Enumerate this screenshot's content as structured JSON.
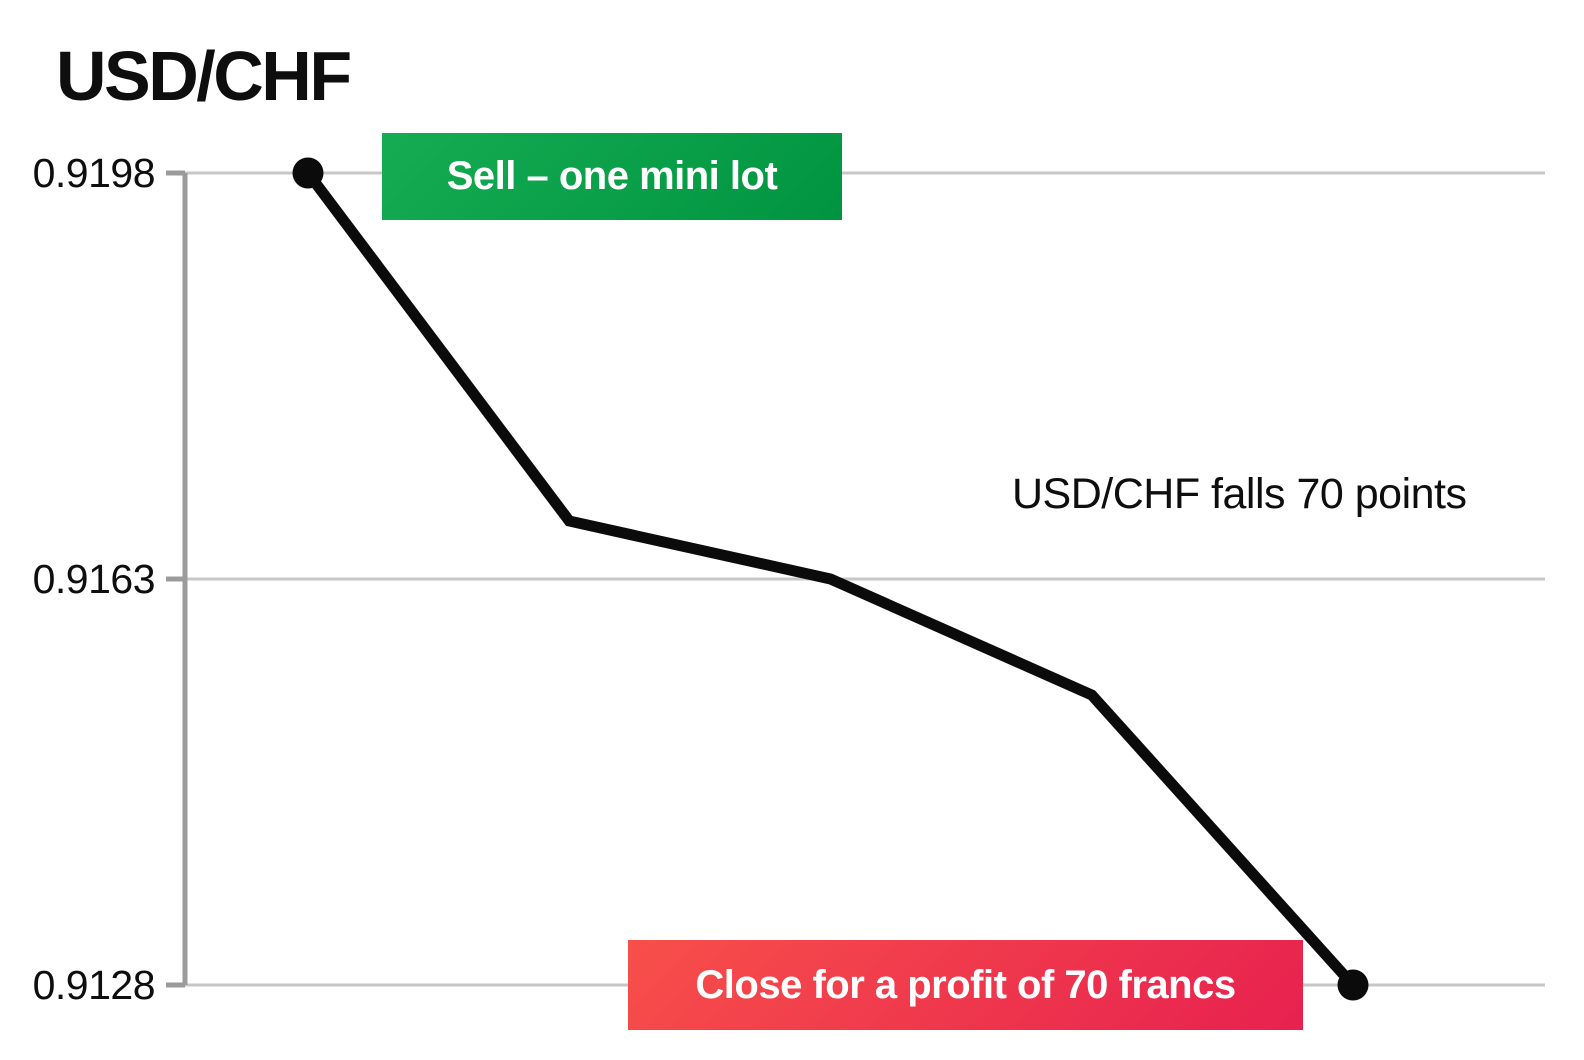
{
  "page": {
    "title": "USD/CHF"
  },
  "badges": {
    "sell_label": "Sell – one mini lot",
    "close_label": "Close for a profit of 70 francs"
  },
  "annotation": {
    "text": "USD/CHF falls 70 points"
  },
  "chart_data": {
    "type": "line",
    "title": "USD/CHF",
    "xlabel": "",
    "ylabel": "",
    "ylim": [
      0.9128,
      0.9198
    ],
    "grid": true,
    "y_ticks": [
      0.9198,
      0.9163,
      0.9128
    ],
    "y_tick_labels": [
      "0.9198",
      "0.9163",
      "0.9128"
    ],
    "series": [
      {
        "name": "USD/CHF",
        "values": [
          0.9198,
          0.9168,
          0.9163,
          0.9153,
          0.9128
        ]
      }
    ],
    "annotations": [
      {
        "type": "sell-marker",
        "text": "Sell – one mini lot",
        "at_value": 0.9198
      },
      {
        "type": "note",
        "text": "USD/CHF falls 70 points"
      },
      {
        "type": "close-marker",
        "text": "Close for a profit of 70 francs",
        "at_value": 0.9128,
        "change_points": -70
      }
    ]
  },
  "theme": {
    "line_color": "#0b0b0b",
    "grid_color": "#c7c7c7",
    "axis_color": "#9b9b9b",
    "text_color": "#0e0e0e",
    "sell_gradient_start": "#15ac53",
    "sell_gradient_end": "#009440",
    "close_gradient_start": "#f74f4a",
    "close_gradient_end": "#e7214f",
    "badge_text_color": "#ffffff",
    "background": "#ffffff"
  }
}
